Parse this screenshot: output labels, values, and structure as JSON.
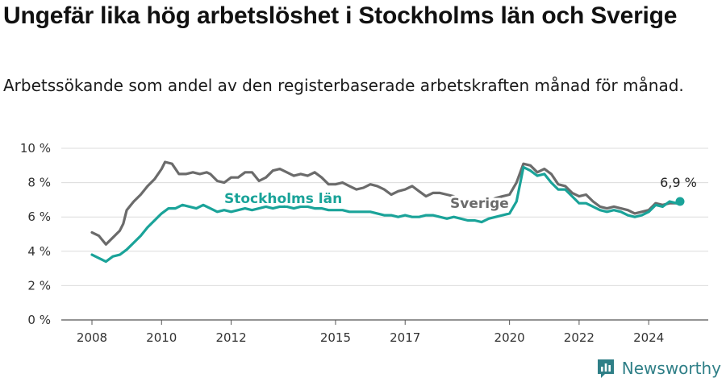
{
  "header": {
    "title": "Ungefär lika hög arbetslöshet i Stockholms län och Sverige",
    "subtitle": "Arbetssökande som andel av den registerbaserade arbetskraften månad för månad."
  },
  "brand": {
    "name": "Newsworthy",
    "icon": "newsworthy-logo-icon",
    "color": "#2f7f87"
  },
  "chart_data": {
    "type": "line",
    "ylim": [
      0,
      10
    ],
    "yticks": [
      "0 %",
      "2 %",
      "4 %",
      "6 %",
      "8 %",
      "10 %"
    ],
    "xticks": [
      "2008",
      "2010",
      "2012",
      "2015",
      "2017",
      "2020",
      "2022",
      "2024"
    ],
    "grid": true,
    "series": [
      {
        "name": "Sverige",
        "color": "#6b6b6b",
        "values": [
          [
            2008.0,
            5.1
          ],
          [
            2008.2,
            4.9
          ],
          [
            2008.4,
            4.4
          ],
          [
            2008.6,
            4.8
          ],
          [
            2008.8,
            5.2
          ],
          [
            2008.9,
            5.6
          ],
          [
            2009.0,
            6.4
          ],
          [
            2009.2,
            6.9
          ],
          [
            2009.4,
            7.3
          ],
          [
            2009.6,
            7.8
          ],
          [
            2009.8,
            8.2
          ],
          [
            2010.0,
            8.8
          ],
          [
            2010.1,
            9.2
          ],
          [
            2010.3,
            9.1
          ],
          [
            2010.5,
            8.5
          ],
          [
            2010.7,
            8.5
          ],
          [
            2010.9,
            8.6
          ],
          [
            2011.1,
            8.5
          ],
          [
            2011.3,
            8.6
          ],
          [
            2011.4,
            8.5
          ],
          [
            2011.6,
            8.1
          ],
          [
            2011.8,
            8.0
          ],
          [
            2012.0,
            8.3
          ],
          [
            2012.2,
            8.3
          ],
          [
            2012.4,
            8.6
          ],
          [
            2012.6,
            8.6
          ],
          [
            2012.8,
            8.1
          ],
          [
            2013.0,
            8.3
          ],
          [
            2013.2,
            8.7
          ],
          [
            2013.4,
            8.8
          ],
          [
            2013.6,
            8.6
          ],
          [
            2013.8,
            8.4
          ],
          [
            2014.0,
            8.5
          ],
          [
            2014.2,
            8.4
          ],
          [
            2014.4,
            8.6
          ],
          [
            2014.6,
            8.3
          ],
          [
            2014.8,
            7.9
          ],
          [
            2015.0,
            7.9
          ],
          [
            2015.2,
            8.0
          ],
          [
            2015.4,
            7.8
          ],
          [
            2015.6,
            7.6
          ],
          [
            2015.8,
            7.7
          ],
          [
            2016.0,
            7.9
          ],
          [
            2016.2,
            7.8
          ],
          [
            2016.4,
            7.6
          ],
          [
            2016.6,
            7.3
          ],
          [
            2016.8,
            7.5
          ],
          [
            2017.0,
            7.6
          ],
          [
            2017.2,
            7.8
          ],
          [
            2017.4,
            7.5
          ],
          [
            2017.6,
            7.2
          ],
          [
            2017.8,
            7.4
          ],
          [
            2018.0,
            7.4
          ],
          [
            2018.2,
            7.3
          ],
          [
            2018.4,
            7.2
          ],
          [
            2018.6,
            7.0
          ],
          [
            2018.8,
            6.9
          ],
          [
            2019.0,
            7.0
          ],
          [
            2019.2,
            6.9
          ],
          [
            2019.4,
            6.9
          ],
          [
            2019.6,
            7.1
          ],
          [
            2019.8,
            7.2
          ],
          [
            2020.0,
            7.3
          ],
          [
            2020.2,
            8.0
          ],
          [
            2020.4,
            9.1
          ],
          [
            2020.6,
            9.0
          ],
          [
            2020.8,
            8.6
          ],
          [
            2021.0,
            8.8
          ],
          [
            2021.2,
            8.5
          ],
          [
            2021.4,
            7.9
          ],
          [
            2021.6,
            7.8
          ],
          [
            2021.8,
            7.4
          ],
          [
            2022.0,
            7.2
          ],
          [
            2022.2,
            7.3
          ],
          [
            2022.4,
            6.9
          ],
          [
            2022.6,
            6.6
          ],
          [
            2022.8,
            6.5
          ],
          [
            2023.0,
            6.6
          ],
          [
            2023.2,
            6.5
          ],
          [
            2023.4,
            6.4
          ],
          [
            2023.6,
            6.2
          ],
          [
            2023.8,
            6.3
          ],
          [
            2024.0,
            6.4
          ],
          [
            2024.2,
            6.8
          ],
          [
            2024.4,
            6.7
          ],
          [
            2024.6,
            6.8
          ],
          [
            2024.8,
            6.8
          ],
          [
            2024.9,
            6.9
          ]
        ]
      },
      {
        "name": "Stockholms län",
        "color": "#1aa399",
        "values": [
          [
            2008.0,
            3.8
          ],
          [
            2008.2,
            3.6
          ],
          [
            2008.4,
            3.4
          ],
          [
            2008.6,
            3.7
          ],
          [
            2008.8,
            3.8
          ],
          [
            2009.0,
            4.1
          ],
          [
            2009.2,
            4.5
          ],
          [
            2009.4,
            4.9
          ],
          [
            2009.6,
            5.4
          ],
          [
            2009.8,
            5.8
          ],
          [
            2010.0,
            6.2
          ],
          [
            2010.2,
            6.5
          ],
          [
            2010.4,
            6.5
          ],
          [
            2010.6,
            6.7
          ],
          [
            2010.8,
            6.6
          ],
          [
            2011.0,
            6.5
          ],
          [
            2011.2,
            6.7
          ],
          [
            2011.4,
            6.5
          ],
          [
            2011.6,
            6.3
          ],
          [
            2011.8,
            6.4
          ],
          [
            2012.0,
            6.3
          ],
          [
            2012.2,
            6.4
          ],
          [
            2012.4,
            6.5
          ],
          [
            2012.6,
            6.4
          ],
          [
            2012.8,
            6.5
          ],
          [
            2013.0,
            6.6
          ],
          [
            2013.2,
            6.5
          ],
          [
            2013.4,
            6.6
          ],
          [
            2013.6,
            6.6
          ],
          [
            2013.8,
            6.5
          ],
          [
            2014.0,
            6.6
          ],
          [
            2014.2,
            6.6
          ],
          [
            2014.4,
            6.5
          ],
          [
            2014.6,
            6.5
          ],
          [
            2014.8,
            6.4
          ],
          [
            2015.0,
            6.4
          ],
          [
            2015.2,
            6.4
          ],
          [
            2015.4,
            6.3
          ],
          [
            2015.6,
            6.3
          ],
          [
            2015.8,
            6.3
          ],
          [
            2016.0,
            6.3
          ],
          [
            2016.2,
            6.2
          ],
          [
            2016.4,
            6.1
          ],
          [
            2016.6,
            6.1
          ],
          [
            2016.8,
            6.0
          ],
          [
            2017.0,
            6.1
          ],
          [
            2017.2,
            6.0
          ],
          [
            2017.4,
            6.0
          ],
          [
            2017.6,
            6.1
          ],
          [
            2017.8,
            6.1
          ],
          [
            2018.0,
            6.0
          ],
          [
            2018.2,
            5.9
          ],
          [
            2018.4,
            6.0
          ],
          [
            2018.6,
            5.9
          ],
          [
            2018.8,
            5.8
          ],
          [
            2019.0,
            5.8
          ],
          [
            2019.2,
            5.7
          ],
          [
            2019.4,
            5.9
          ],
          [
            2019.6,
            6.0
          ],
          [
            2019.8,
            6.1
          ],
          [
            2020.0,
            6.2
          ],
          [
            2020.2,
            6.9
          ],
          [
            2020.4,
            8.9
          ],
          [
            2020.6,
            8.7
          ],
          [
            2020.8,
            8.4
          ],
          [
            2021.0,
            8.5
          ],
          [
            2021.2,
            8.0
          ],
          [
            2021.4,
            7.6
          ],
          [
            2021.6,
            7.6
          ],
          [
            2021.8,
            7.2
          ],
          [
            2022.0,
            6.8
          ],
          [
            2022.2,
            6.8
          ],
          [
            2022.4,
            6.6
          ],
          [
            2022.6,
            6.4
          ],
          [
            2022.8,
            6.3
          ],
          [
            2023.0,
            6.4
          ],
          [
            2023.2,
            6.3
          ],
          [
            2023.4,
            6.1
          ],
          [
            2023.6,
            6.0
          ],
          [
            2023.8,
            6.1
          ],
          [
            2024.0,
            6.3
          ],
          [
            2024.2,
            6.7
          ],
          [
            2024.4,
            6.6
          ],
          [
            2024.6,
            6.9
          ],
          [
            2024.8,
            6.8
          ],
          [
            2024.9,
            6.9
          ]
        ]
      }
    ],
    "end_label": "6,9 %"
  }
}
